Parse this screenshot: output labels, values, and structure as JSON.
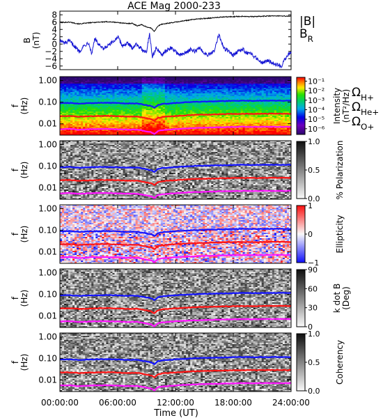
{
  "chart_data": {
    "type": "line+spectrogram",
    "title": "ACE Mag 2000-233",
    "xlabel": "Time (UT)",
    "x_ticks": [
      "00:00:00",
      "06:00:00",
      "12:00:00",
      "18:00:00",
      "24:00:00"
    ],
    "xlim_hours": [
      0,
      24
    ],
    "panels": [
      {
        "id": "B",
        "type": "line",
        "ylabel": "B",
        "yunit": "(nT)",
        "ylim": [
          -7,
          9
        ],
        "y_ticks": [
          "8",
          "6",
          "4",
          "2",
          "0",
          "−2",
          "−4",
          "−6"
        ],
        "y_tick_values": [
          8,
          6,
          4,
          2,
          0,
          -2,
          -4,
          -6
        ],
        "series": [
          {
            "name": "|B|",
            "color": "#000000",
            "x": [
              0,
              1,
              2,
              3,
              4,
              5,
              6,
              7,
              7.5,
              8,
              8.5,
              9,
              9.5,
              9.8,
              10.2,
              10.5,
              11,
              11.5,
              12,
              13,
              14,
              15,
              16,
              17,
              18,
              19,
              20,
              21,
              22,
              23,
              24
            ],
            "values": [
              5.9,
              6.0,
              5.5,
              5.8,
              6.0,
              6.1,
              5.9,
              5.6,
              5.7,
              5.0,
              5.3,
              4.7,
              4.3,
              3.5,
              4.9,
              5.4,
              5.6,
              5.8,
              6.0,
              6.4,
              6.8,
              7.0,
              7.2,
              7.4,
              7.5,
              7.6,
              7.5,
              7.6,
              7.7,
              7.7,
              7.6
            ]
          },
          {
            "name": "B",
            "name_subscript": "R",
            "color": "#1414d4",
            "x": [
              0,
              0.5,
              1,
              1.5,
              2,
              2.5,
              3,
              3.3,
              3.6,
              4,
              4.5,
              5,
              5.5,
              6,
              6.5,
              7,
              7.5,
              8,
              8.5,
              9,
              9.3,
              9.6,
              10,
              10.5,
              11,
              11.5,
              12,
              12.5,
              13,
              13.5,
              14,
              14.5,
              15,
              15.5,
              16,
              16.5,
              17,
              17.5,
              18,
              18.5,
              19,
              19.5,
              20,
              20.5,
              21,
              21.5,
              22,
              22.5,
              23,
              23.5,
              24
            ],
            "values": [
              1.0,
              0.2,
              0.8,
              -0.5,
              -2.0,
              -0.5,
              0.5,
              -2.8,
              1.5,
              0.0,
              -1.5,
              -0.5,
              0.5,
              2.0,
              -0.5,
              0.2,
              -1.0,
              0.0,
              -1.5,
              -2.0,
              3.0,
              -3.5,
              -1.0,
              -3.0,
              -2.0,
              -1.0,
              -2.0,
              -3.0,
              -2.5,
              -1.5,
              -2.0,
              -1.0,
              -2.5,
              -3.0,
              -2.0,
              2.5,
              -1.0,
              -2.0,
              -3.0,
              -2.0,
              -1.5,
              -2.5,
              -3.0,
              -4.0,
              -5.0,
              -4.5,
              -5.0,
              -5.5,
              -6.0,
              -3.5,
              -2.0
            ]
          }
        ]
      },
      {
        "id": "intensity",
        "type": "heatmap",
        "ylabel": "f",
        "yunit": "(Hz)",
        "log_y": true,
        "ylim": [
          0.003,
          1.5
        ],
        "y_ticks": [
          "1.00",
          "0.10",
          "0.01"
        ],
        "y_tick_values": [
          1,
          0.1,
          0.01
        ],
        "colorbar_label": "Intensity",
        "colorbar_unit": "(nT²/Hz)",
        "colorbar_ticks": [
          "10⁻¹",
          "10⁻²",
          "10⁻³",
          "10⁻⁴",
          "10⁻⁵",
          "10⁻⁶"
        ],
        "colorbar_tick_values": [
          -1,
          -2,
          -3,
          -4,
          -5,
          -6
        ],
        "colorscale": "rainbow",
        "colors": {
          "low": "#3a0a78",
          "high": "#ff0000"
        }
      },
      {
        "id": "polarization",
        "type": "heatmap",
        "ylabel": "f",
        "yunit": "(Hz)",
        "log_y": true,
        "ylim": [
          0.003,
          1.5
        ],
        "y_ticks": [
          "1.00",
          "0.10",
          "0.01"
        ],
        "y_tick_values": [
          1,
          0.1,
          0.01
        ],
        "colorbar_label": "% Polarization",
        "colorbar_ticks": [
          "1.0",
          "0.5",
          "0.0"
        ],
        "colorbar_tick_values": [
          1,
          0.5,
          0
        ],
        "colorscale": "gray_reversed"
      },
      {
        "id": "ellipticity",
        "type": "heatmap",
        "ylabel": "f",
        "yunit": "(Hz)",
        "log_y": true,
        "ylim": [
          0.003,
          1.5
        ],
        "y_ticks": [
          "1.00",
          "0.10",
          "0.01"
        ],
        "y_tick_values": [
          1,
          0.1,
          0.01
        ],
        "colorbar_label": "Ellipticity",
        "colorbar_ticks": [
          "1",
          "0",
          "−1"
        ],
        "colorbar_tick_values": [
          1,
          0,
          -1
        ],
        "colorscale": "blue_white_red"
      },
      {
        "id": "kdotb",
        "type": "heatmap",
        "ylabel": "f",
        "yunit": "(Hz)",
        "log_y": true,
        "ylim": [
          0.003,
          1.5
        ],
        "y_ticks": [
          "1.00",
          "0.10",
          "0.01"
        ],
        "y_tick_values": [
          1,
          0.1,
          0.01
        ],
        "colorbar_label": "k dot B",
        "colorbar_unit": "(Deg)",
        "colorbar_ticks": [
          "90",
          "60",
          "30",
          "0"
        ],
        "colorbar_tick_values": [
          90,
          60,
          30,
          0
        ],
        "colorscale": "gray_reversed"
      },
      {
        "id": "coherency",
        "type": "heatmap",
        "ylabel": "f",
        "yunit": "(Hz)",
        "log_y": true,
        "ylim": [
          0.003,
          1.5
        ],
        "y_ticks": [
          "1.00",
          "0.10",
          "0.01"
        ],
        "y_tick_values": [
          1,
          0.1,
          0.01
        ],
        "colorbar_label": "Coherency",
        "colorbar_ticks": [
          "1.0",
          "0.5",
          "0.0"
        ],
        "colorbar_tick_values": [
          1,
          0.5,
          0
        ],
        "colorscale": "gray_reversed"
      }
    ],
    "gyrofrequency_lines": {
      "x": [
        0,
        1,
        2,
        3,
        4,
        5,
        6,
        7,
        8,
        9,
        9.5,
        9.8,
        10.2,
        10.6,
        11,
        12,
        13,
        14,
        15,
        16,
        17,
        18,
        19,
        20,
        21,
        22,
        23,
        24
      ],
      "series": [
        {
          "name": "Ω",
          "name_subscript": "H+",
          "color": "#1414ff",
          "values": [
            0.09,
            0.092,
            0.085,
            0.089,
            0.092,
            0.093,
            0.09,
            0.086,
            0.087,
            0.072,
            0.066,
            0.053,
            0.075,
            0.082,
            0.085,
            0.091,
            0.097,
            0.103,
            0.106,
            0.109,
            0.112,
            0.114,
            0.116,
            0.115,
            0.116,
            0.117,
            0.117,
            0.116
          ]
        },
        {
          "name": "Ω",
          "name_subscript": "He+",
          "color": "#ff1414",
          "values": [
            0.0225,
            0.023,
            0.0213,
            0.0222,
            0.023,
            0.0233,
            0.0225,
            0.0215,
            0.0218,
            0.018,
            0.0165,
            0.0133,
            0.0188,
            0.0205,
            0.0213,
            0.0228,
            0.0243,
            0.0258,
            0.0265,
            0.0273,
            0.028,
            0.0285,
            0.029,
            0.0288,
            0.029,
            0.0293,
            0.0293,
            0.029
          ]
        },
        {
          "name": "Ω",
          "name_subscript": "O+",
          "color": "#ff14ff",
          "values": [
            0.0056,
            0.0058,
            0.0053,
            0.0056,
            0.0058,
            0.0058,
            0.0056,
            0.0054,
            0.0054,
            0.0045,
            0.0041,
            0.0033,
            0.0047,
            0.0051,
            0.0053,
            0.0057,
            0.0061,
            0.0064,
            0.0066,
            0.0068,
            0.007,
            0.0071,
            0.0073,
            0.0072,
            0.0073,
            0.0073,
            0.0073,
            0.0073
          ]
        }
      ]
    }
  }
}
